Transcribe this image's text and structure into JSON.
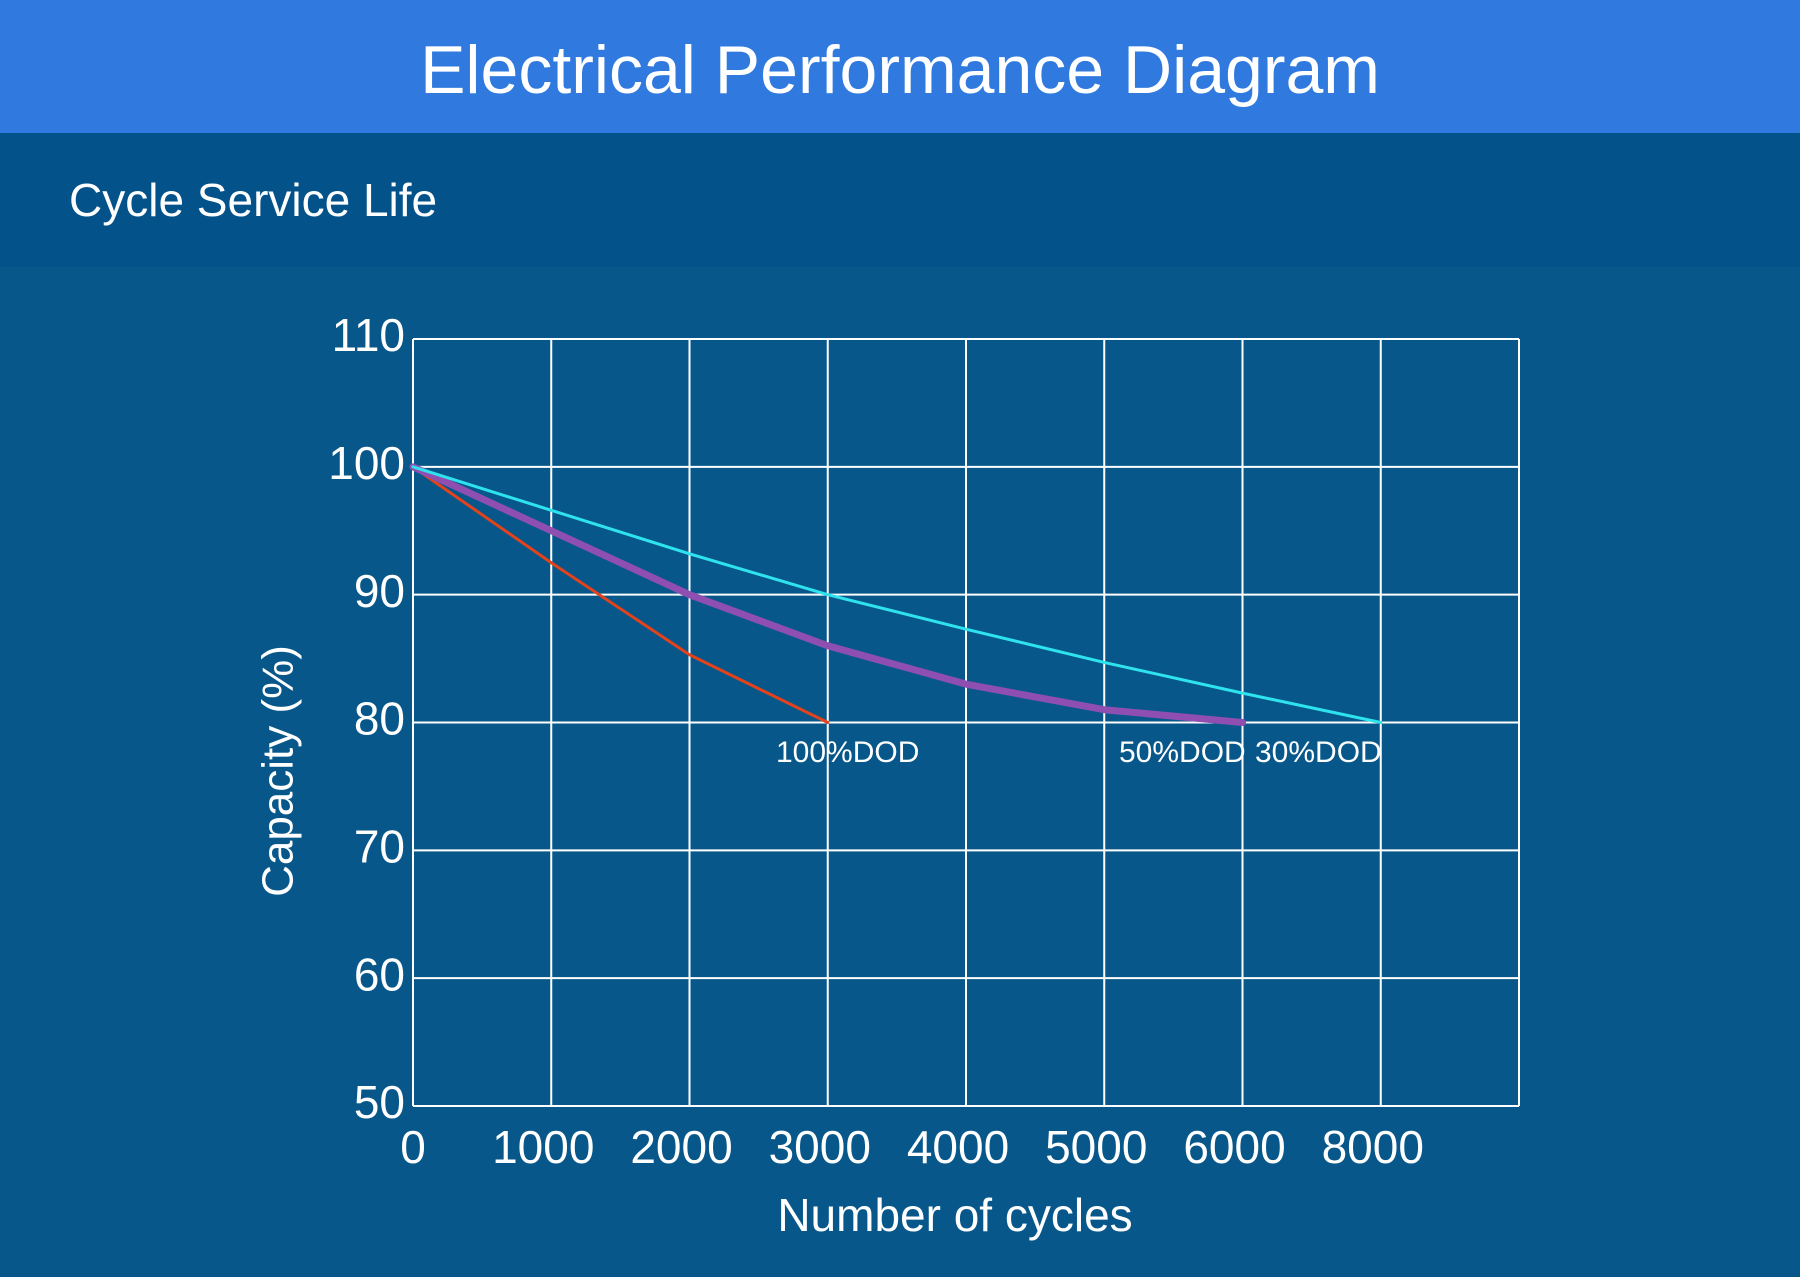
{
  "header": {
    "title": "Electrical Performance Diagram",
    "subtitle": "Cycle Service Life"
  },
  "chart_data": {
    "type": "line",
    "x_label": "Number of cycles",
    "y_label": "Capacity (%)",
    "categories": [
      "0",
      "1000",
      "2000",
      "3000",
      "4000",
      "5000",
      "6000",
      "8000",
      null
    ],
    "series": [
      {
        "name": "100%DOD",
        "color": "#e2421c",
        "values": [
          100,
          92.5,
          85.3,
          80,
          null,
          null,
          null,
          null,
          null
        ]
      },
      {
        "name": "50%DOD",
        "color": "#8f4fb1",
        "values": [
          100,
          95,
          90,
          86,
          83,
          81,
          80,
          null,
          null
        ]
      },
      {
        "name": "30%DOD",
        "color": "#2fe3ee",
        "values": [
          100,
          96.6,
          93.2,
          90,
          87.3,
          84.7,
          82.3,
          80,
          null
        ]
      }
    ],
    "ylim": [
      50,
      110
    ],
    "yticks": [
      50,
      60,
      70,
      80,
      90,
      100,
      110
    ],
    "grid": true
  }
}
